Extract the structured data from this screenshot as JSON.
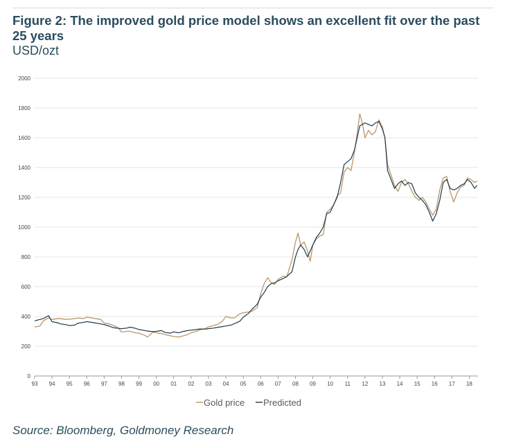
{
  "header": {
    "title": "Figure 2: The improved gold price model shows an excellent fit over the past 25 years",
    "unit": "USD/ozt"
  },
  "footer": {
    "source": "Source: Bloomberg, Goldmoney Research"
  },
  "chart_data": {
    "type": "line",
    "title": "Figure 2: The improved gold price model shows an excellent fit over the past 25 years",
    "ylabel": "USD/ozt",
    "xlabel": "",
    "ylim": [
      0,
      2000
    ],
    "xlim": [
      1993,
      2018.5
    ],
    "y_ticks": [
      0,
      200,
      400,
      600,
      800,
      1000,
      1200,
      1400,
      1600,
      1800,
      2000
    ],
    "x_ticks": [
      {
        "label": "93",
        "x": 1993
      },
      {
        "label": "94",
        "x": 1994
      },
      {
        "label": "95",
        "x": 1995
      },
      {
        "label": "96",
        "x": 1996
      },
      {
        "label": "97",
        "x": 1997
      },
      {
        "label": "98",
        "x": 1998
      },
      {
        "label": "99",
        "x": 1999
      },
      {
        "label": "00",
        "x": 2000
      },
      {
        "label": "01",
        "x": 2001
      },
      {
        "label": "02",
        "x": 2002
      },
      {
        "label": "03",
        "x": 2003
      },
      {
        "label": "04",
        "x": 2004
      },
      {
        "label": "05",
        "x": 2005
      },
      {
        "label": "06",
        "x": 2006
      },
      {
        "label": "07",
        "x": 2007
      },
      {
        "label": "08",
        "x": 2008
      },
      {
        "label": "09",
        "x": 2009
      },
      {
        "label": "10",
        "x": 2010
      },
      {
        "label": "11",
        "x": 2011
      },
      {
        "label": "12",
        "x": 2012
      },
      {
        "label": "13",
        "x": 2013
      },
      {
        "label": "14",
        "x": 2014
      },
      {
        "label": "15",
        "x": 2015
      },
      {
        "label": "16",
        "x": 2016
      },
      {
        "label": "17",
        "x": 2017
      },
      {
        "label": "18",
        "x": 2018
      }
    ],
    "grid": "horizontal",
    "legend": "bottom-center",
    "series": [
      {
        "name": "Gold price",
        "color": "#b8956a",
        "x": [
          1993.0,
          1993.3,
          1993.5,
          1993.8,
          1994.0,
          1994.3,
          1994.5,
          1994.8,
          1995.0,
          1995.3,
          1995.5,
          1995.8,
          1996.0,
          1996.3,
          1996.5,
          1996.8,
          1997.0,
          1997.3,
          1997.5,
          1997.8,
          1998.0,
          1998.3,
          1998.5,
          1998.8,
          1999.0,
          1999.3,
          1999.5,
          1999.8,
          2000.0,
          2000.3,
          2000.5,
          2000.8,
          2001.0,
          2001.3,
          2001.5,
          2001.8,
          2002.0,
          2002.3,
          2002.5,
          2002.8,
          2003.0,
          2003.3,
          2003.5,
          2003.8,
          2004.0,
          2004.3,
          2004.5,
          2004.8,
          2005.0,
          2005.3,
          2005.5,
          2005.8,
          2006.0,
          2006.2,
          2006.4,
          2006.6,
          2006.8,
          2007.0,
          2007.3,
          2007.5,
          2007.8,
          2008.0,
          2008.15,
          2008.3,
          2008.5,
          2008.7,
          2008.85,
          2009.0,
          2009.2,
          2009.4,
          2009.6,
          2009.8,
          2010.0,
          2010.2,
          2010.4,
          2010.6,
          2010.8,
          2011.0,
          2011.2,
          2011.4,
          2011.55,
          2011.7,
          2011.85,
          2012.0,
          2012.2,
          2012.4,
          2012.6,
          2012.8,
          2013.0,
          2013.15,
          2013.3,
          2013.5,
          2013.7,
          2013.9,
          2014.1,
          2014.3,
          2014.5,
          2014.7,
          2014.9,
          2015.1,
          2015.3,
          2015.5,
          2015.7,
          2015.9,
          2016.1,
          2016.3,
          2016.5,
          2016.7,
          2016.9,
          2017.1,
          2017.3,
          2017.5,
          2017.7,
          2017.9,
          2018.1,
          2018.3,
          2018.45
        ],
        "values": [
          330,
          335,
          370,
          390,
          380,
          385,
          385,
          380,
          382,
          385,
          390,
          385,
          395,
          390,
          385,
          380,
          355,
          350,
          340,
          325,
          295,
          300,
          300,
          290,
          288,
          275,
          262,
          295,
          290,
          285,
          278,
          270,
          265,
          262,
          268,
          278,
          290,
          300,
          310,
          318,
          330,
          340,
          345,
          368,
          400,
          390,
          390,
          418,
          425,
          430,
          435,
          460,
          550,
          620,
          660,
          630,
          615,
          650,
          670,
          665,
          780,
          900,
          960,
          880,
          900,
          840,
          770,
          880,
          920,
          940,
          950,
          1100,
          1120,
          1150,
          1210,
          1230,
          1370,
          1400,
          1380,
          1510,
          1630,
          1760,
          1700,
          1600,
          1650,
          1620,
          1640,
          1720,
          1670,
          1600,
          1420,
          1350,
          1280,
          1240,
          1300,
          1320,
          1290,
          1240,
          1200,
          1180,
          1200,
          1170,
          1120,
          1080,
          1120,
          1250,
          1330,
          1340,
          1240,
          1170,
          1230,
          1270,
          1280,
          1330,
          1320,
          1300,
          1310
        ]
      },
      {
        "name": "Predicted",
        "color": "#1c3a4a",
        "x": [
          1993.0,
          1993.3,
          1993.5,
          1993.8,
          1994.0,
          1994.3,
          1994.5,
          1994.8,
          1995.0,
          1995.3,
          1995.5,
          1995.8,
          1996.0,
          1996.3,
          1996.5,
          1996.8,
          1997.0,
          1997.3,
          1997.5,
          1997.8,
          1998.0,
          1998.3,
          1998.5,
          1998.8,
          1999.0,
          1999.3,
          1999.5,
          1999.8,
          2000.0,
          2000.3,
          2000.5,
          2000.8,
          2001.0,
          2001.3,
          2001.5,
          2001.8,
          2002.0,
          2002.3,
          2002.5,
          2002.8,
          2003.0,
          2003.3,
          2003.5,
          2003.8,
          2004.0,
          2004.3,
          2004.5,
          2004.8,
          2005.0,
          2005.3,
          2005.5,
          2005.8,
          2006.0,
          2006.2,
          2006.4,
          2006.6,
          2006.8,
          2007.0,
          2007.3,
          2007.5,
          2007.8,
          2008.0,
          2008.15,
          2008.3,
          2008.5,
          2008.7,
          2008.85,
          2009.0,
          2009.2,
          2009.4,
          2009.6,
          2009.8,
          2010.0,
          2010.2,
          2010.4,
          2010.6,
          2010.8,
          2011.0,
          2011.2,
          2011.4,
          2011.55,
          2011.7,
          2011.85,
          2012.0,
          2012.2,
          2012.4,
          2012.6,
          2012.8,
          2013.0,
          2013.15,
          2013.3,
          2013.5,
          2013.7,
          2013.9,
          2014.1,
          2014.3,
          2014.5,
          2014.7,
          2014.9,
          2015.1,
          2015.3,
          2015.5,
          2015.7,
          2015.9,
          2016.1,
          2016.3,
          2016.5,
          2016.7,
          2016.9,
          2017.1,
          2017.3,
          2017.5,
          2017.7,
          2017.9,
          2018.1,
          2018.3,
          2018.45
        ],
        "values": [
          370,
          380,
          385,
          405,
          365,
          358,
          350,
          345,
          338,
          342,
          355,
          360,
          365,
          360,
          356,
          350,
          345,
          335,
          325,
          320,
          318,
          322,
          328,
          320,
          312,
          306,
          302,
          298,
          300,
          305,
          292,
          288,
          296,
          290,
          298,
          305,
          308,
          312,
          316,
          315,
          318,
          322,
          326,
          332,
          336,
          342,
          352,
          368,
          395,
          420,
          448,
          482,
          530,
          560,
          600,
          620,
          625,
          640,
          655,
          668,
          700,
          800,
          850,
          880,
          850,
          800,
          840,
          880,
          930,
          960,
          1000,
          1090,
          1100,
          1150,
          1200,
          1300,
          1420,
          1440,
          1460,
          1520,
          1600,
          1680,
          1690,
          1700,
          1690,
          1680,
          1700,
          1710,
          1660,
          1600,
          1380,
          1320,
          1260,
          1290,
          1310,
          1280,
          1300,
          1290,
          1230,
          1200,
          1180,
          1150,
          1100,
          1040,
          1090,
          1180,
          1300,
          1320,
          1260,
          1250,
          1260,
          1280,
          1290,
          1320,
          1300,
          1260,
          1280
        ]
      }
    ]
  }
}
